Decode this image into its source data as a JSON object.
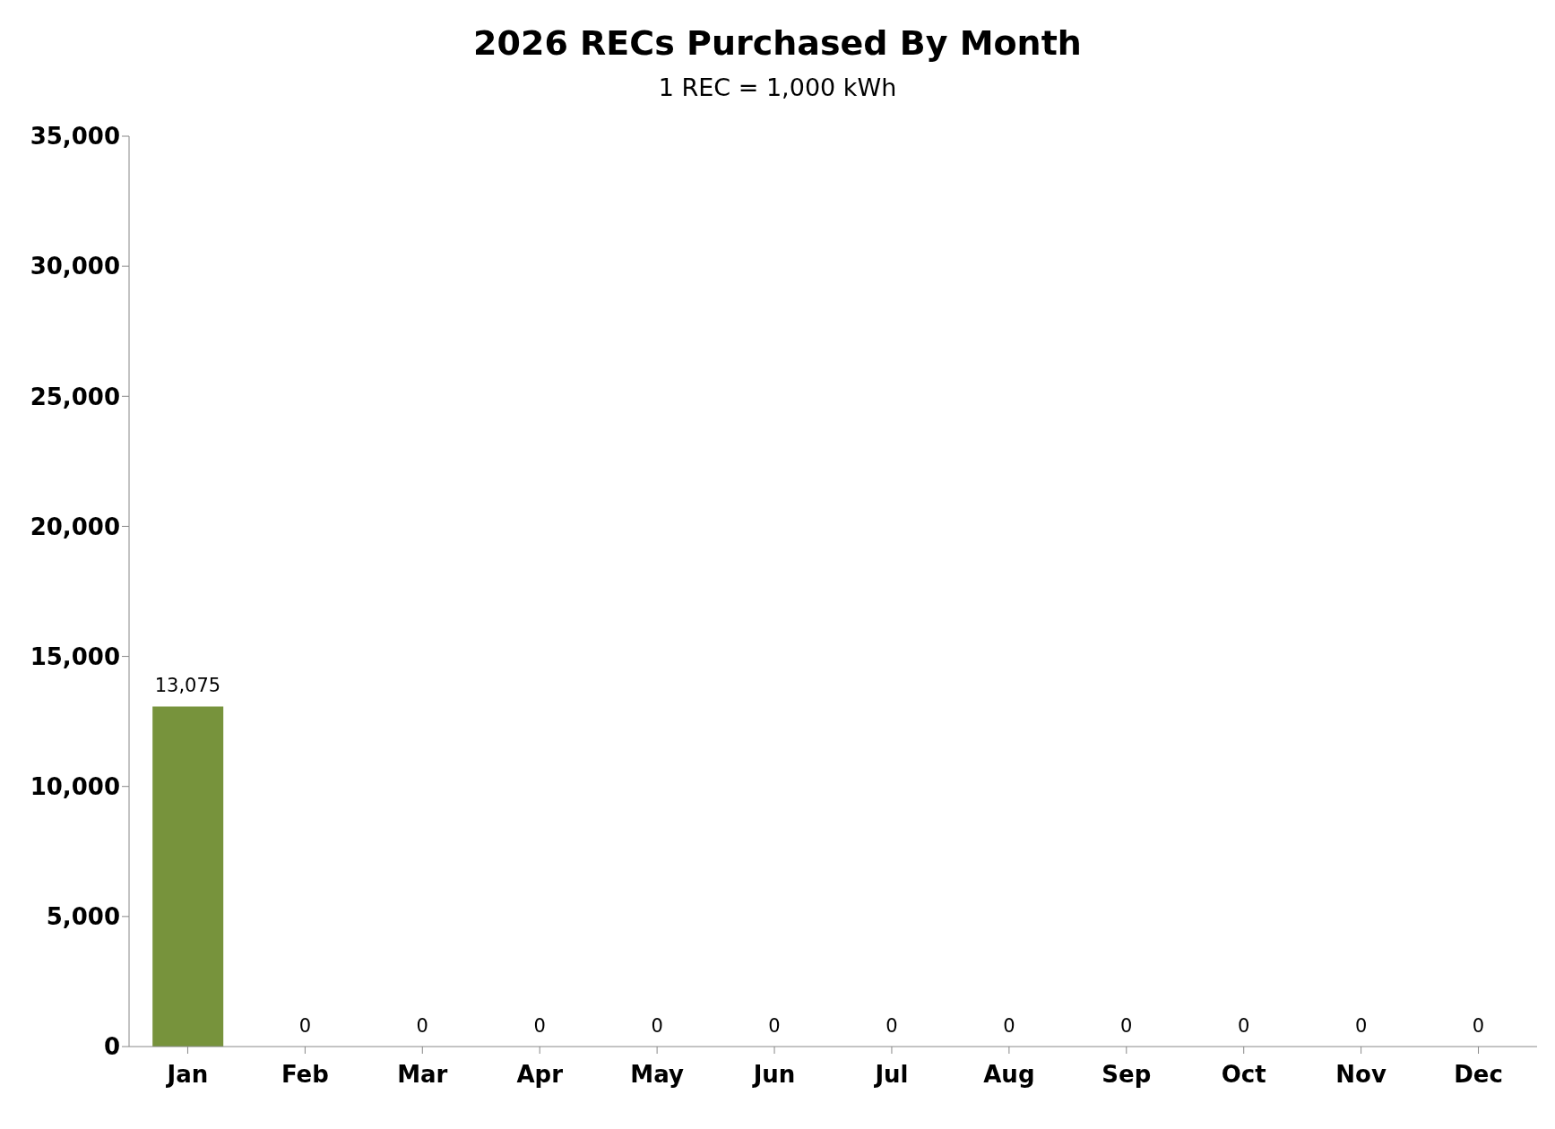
{
  "chart_data": {
    "type": "bar",
    "title": "2026 RECs Purchased By Month",
    "subtitle": "1 REC = 1,000 kWh",
    "categories": [
      "Jan",
      "Feb",
      "Mar",
      "Apr",
      "May",
      "Jun",
      "Jul",
      "Aug",
      "Sep",
      "Oct",
      "Nov",
      "Dec"
    ],
    "values": [
      13075,
      0,
      0,
      0,
      0,
      0,
      0,
      0,
      0,
      0,
      0,
      0
    ],
    "color": "#77933c",
    "value_labels": [
      "13,075",
      "0",
      "0",
      "0",
      "0",
      "0",
      "0",
      "0",
      "0",
      "0",
      "0",
      "0"
    ],
    "ylim": [
      0,
      35000
    ],
    "yticks": [
      0,
      {
        "value": 5000,
        "label": "5,000"
      },
      {
        "value": 10000,
        "label": "10,000"
      },
      {
        "value": 15000,
        "label": "15,000"
      },
      {
        "value": 20000,
        "label": "20,000"
      },
      {
        "value": 25000,
        "label": "25,000"
      },
      {
        "value": 30000,
        "label": "30,000"
      },
      {
        "value": 35000,
        "label": "35,000"
      }
    ],
    "grid": false,
    "legend": false
  }
}
